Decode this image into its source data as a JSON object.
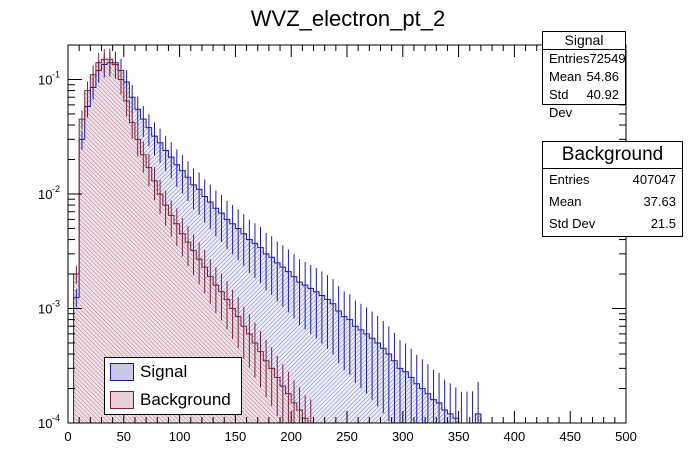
{
  "chart_data": {
    "type": "histogram",
    "title": "WVZ_electron_pt_2",
    "xlabel": "",
    "ylabel": "",
    "xlim": [
      0,
      500
    ],
    "ylim": [
      0.0001,
      0.2
    ],
    "y_scale": "log",
    "x_ticks": [
      "0",
      "50",
      "100",
      "150",
      "200",
      "250",
      "300",
      "350",
      "400",
      "450",
      "500"
    ],
    "y_ticks": [
      "10",
      "10",
      "10",
      "10"
    ],
    "y_tick_exponents": [
      "-4",
      "-3",
      "-2",
      "-1"
    ],
    "bin_width": 5,
    "series": [
      {
        "name": "Signal",
        "color": "#1c1c9e",
        "fill": "#c9c9e6",
        "bins": [
          [
            5,
            0.00125
          ],
          [
            10,
            0.03
          ],
          [
            15,
            0.058
          ],
          [
            20,
            0.085
          ],
          [
            25,
            0.12
          ],
          [
            30,
            0.135
          ],
          [
            35,
            0.14
          ],
          [
            40,
            0.14
          ],
          [
            45,
            0.12
          ],
          [
            50,
            0.095
          ],
          [
            55,
            0.07
          ],
          [
            60,
            0.055
          ],
          [
            65,
            0.045
          ],
          [
            70,
            0.038
          ],
          [
            75,
            0.032
          ],
          [
            80,
            0.028
          ],
          [
            85,
            0.024
          ],
          [
            90,
            0.021
          ],
          [
            95,
            0.018
          ],
          [
            100,
            0.016
          ],
          [
            105,
            0.014
          ],
          [
            110,
            0.012
          ],
          [
            115,
            0.011
          ],
          [
            120,
            0.0095
          ],
          [
            125,
            0.0085
          ],
          [
            130,
            0.0075
          ],
          [
            135,
            0.0068
          ],
          [
            140,
            0.006
          ],
          [
            145,
            0.0055
          ],
          [
            150,
            0.005
          ],
          [
            155,
            0.0045
          ],
          [
            160,
            0.004
          ],
          [
            165,
            0.0037
          ],
          [
            170,
            0.0034
          ],
          [
            175,
            0.003
          ],
          [
            180,
            0.0028
          ],
          [
            185,
            0.0025
          ],
          [
            190,
            0.0023
          ],
          [
            195,
            0.0021
          ],
          [
            200,
            0.0019
          ],
          [
            205,
            0.0017
          ],
          [
            210,
            0.0016
          ],
          [
            215,
            0.0015
          ],
          [
            220,
            0.0014
          ],
          [
            225,
            0.0013
          ],
          [
            230,
            0.0012
          ],
          [
            235,
            0.0011
          ],
          [
            240,
            0.00095
          ],
          [
            245,
            0.00085
          ],
          [
            250,
            0.0008
          ],
          [
            255,
            0.0007
          ],
          [
            260,
            0.00065
          ],
          [
            265,
            0.0006
          ],
          [
            270,
            0.00055
          ],
          [
            275,
            0.0005
          ],
          [
            280,
            0.00045
          ],
          [
            285,
            0.0004
          ],
          [
            290,
            0.00035
          ],
          [
            295,
            0.0003
          ],
          [
            300,
            0.00028
          ],
          [
            305,
            0.00025
          ],
          [
            310,
            0.00022
          ],
          [
            315,
            0.0002
          ],
          [
            320,
            0.00018
          ],
          [
            325,
            0.00016
          ],
          [
            330,
            0.00015
          ],
          [
            335,
            0.00013
          ],
          [
            340,
            0.00012
          ],
          [
            345,
            0.00011
          ],
          [
            350,
            0.0001
          ],
          [
            355,
            0.0001
          ],
          [
            360,
            0.0001
          ],
          [
            365,
            0.00012
          ]
        ]
      },
      {
        "name": "Background",
        "color": "#7a1f3d",
        "fill": "#e6cfd6",
        "bins": [
          [
            5,
            0.002
          ],
          [
            10,
            0.045
          ],
          [
            15,
            0.08
          ],
          [
            20,
            0.11
          ],
          [
            25,
            0.14
          ],
          [
            30,
            0.15
          ],
          [
            35,
            0.15
          ],
          [
            40,
            0.135
          ],
          [
            45,
            0.1
          ],
          [
            50,
            0.065
          ],
          [
            55,
            0.042
          ],
          [
            60,
            0.03
          ],
          [
            65,
            0.022
          ],
          [
            70,
            0.017
          ],
          [
            75,
            0.013
          ],
          [
            80,
            0.01
          ],
          [
            85,
            0.008
          ],
          [
            90,
            0.0065
          ],
          [
            95,
            0.0055
          ],
          [
            100,
            0.0045
          ],
          [
            105,
            0.0038
          ],
          [
            110,
            0.0032
          ],
          [
            115,
            0.0027
          ],
          [
            120,
            0.0023
          ],
          [
            125,
            0.0019
          ],
          [
            130,
            0.0016
          ],
          [
            135,
            0.0014
          ],
          [
            140,
            0.0012
          ],
          [
            145,
            0.001
          ],
          [
            150,
            0.00085
          ],
          [
            155,
            0.0007
          ],
          [
            160,
            0.0006
          ],
          [
            165,
            0.0005
          ],
          [
            170,
            0.00042
          ],
          [
            175,
            0.00035
          ],
          [
            180,
            0.0003
          ],
          [
            185,
            0.00025
          ],
          [
            190,
            0.00021
          ],
          [
            195,
            0.00018
          ],
          [
            200,
            0.00015
          ],
          [
            205,
            0.00013
          ],
          [
            210,
            0.00011
          ],
          [
            215,
            0.0001
          ]
        ]
      }
    ],
    "legend": {
      "placement": "bottom-left",
      "entries": [
        "Signal",
        "Background"
      ]
    },
    "stats": [
      {
        "title": "Signal",
        "rows": [
          {
            "label": "Entries",
            "value": "72549"
          },
          {
            "label": "Mean",
            "value": "54.86"
          },
          {
            "label": "Std Dev",
            "value": "40.92"
          }
        ]
      },
      {
        "title": "Background",
        "rows": [
          {
            "label": "Entries",
            "value": "407047"
          },
          {
            "label": "Mean",
            "value": "37.63"
          },
          {
            "label": "Std Dev",
            "value": "21.5"
          }
        ]
      }
    ]
  }
}
